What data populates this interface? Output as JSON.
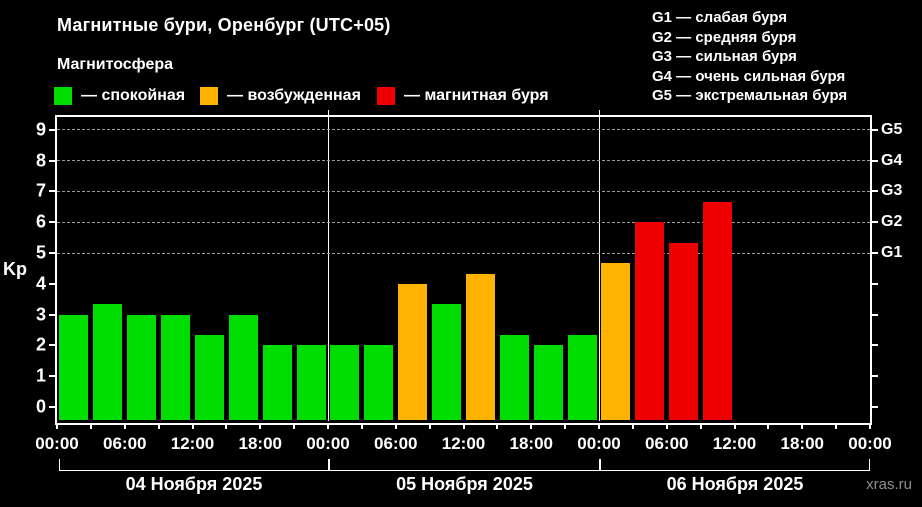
{
  "header": {
    "title": "Магнитные бури, Оренбург (UTC+05)",
    "subtitle": "Магнитосфера"
  },
  "legend": [
    {
      "status": "quiet",
      "label": "— спокойная"
    },
    {
      "status": "excited",
      "label": "— возбужденная"
    },
    {
      "status": "storm",
      "label": "— магнитная буря"
    }
  ],
  "g_legend": [
    "G1 — слабая буря",
    "G2 — средняя буря",
    "G3 — сильная буря",
    "G4 — очень сильная буря",
    "G5 — экстремальная буря"
  ],
  "footer": {
    "watermark": "xras.ru"
  },
  "colors": {
    "background": "#000000",
    "text": "#ffffff",
    "quiet": "#00dd00",
    "excited": "#ffb300",
    "storm": "#ee0000",
    "grid": "#9b9b9b",
    "watermark": "#8f8f8f"
  },
  "chart_data": {
    "type": "bar",
    "title": "Магнитные бури, Оренбург (UTC+05)",
    "ylabel": "Kp",
    "ylim": [
      0,
      9
    ],
    "y_ticks": [
      0,
      1,
      2,
      3,
      4,
      5,
      6,
      7,
      8,
      9
    ],
    "grid_levels": [
      5,
      6,
      7,
      8,
      9
    ],
    "right_axis_labels": [
      {
        "text": "G1",
        "value": 5
      },
      {
        "text": "G2",
        "value": 6
      },
      {
        "text": "G3",
        "value": 7
      },
      {
        "text": "G4",
        "value": 8
      },
      {
        "text": "G5",
        "value": 9
      }
    ],
    "x_tick_labels": [
      "00:00",
      "06:00",
      "12:00",
      "18:00",
      "00:00",
      "06:00",
      "12:00",
      "18:00",
      "00:00",
      "06:00",
      "12:00",
      "18:00",
      "00:00"
    ],
    "hours_per_bar": 3,
    "status_thresholds": {
      "excited_min_kp": 4,
      "storm_min_kp": 5
    },
    "days": [
      {
        "date_label": "04 Ноября 2025",
        "kp_values": [
          3,
          3.33,
          3,
          3,
          2.33,
          3,
          2,
          2
        ]
      },
      {
        "date_label": "05 Ноября 2025",
        "kp_values": [
          2,
          2,
          4,
          3.33,
          4.33,
          2.33,
          2,
          2.33
        ]
      },
      {
        "date_label": "06 Ноября 2025",
        "kp_values": [
          4.67,
          6,
          5.33,
          6.67,
          null,
          null,
          null,
          null
        ]
      }
    ]
  }
}
